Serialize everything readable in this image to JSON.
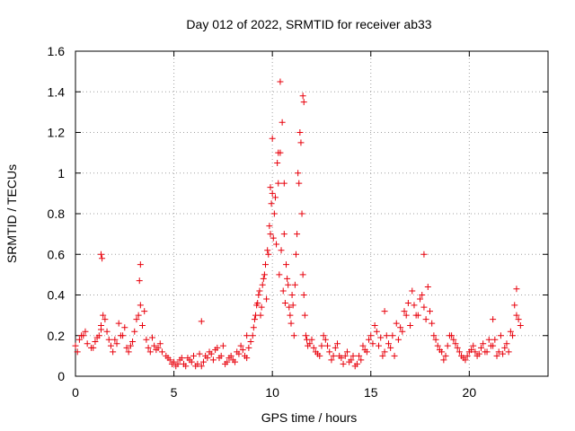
{
  "chart_data": {
    "type": "scatter",
    "title": "Day 012 of 2022, SRMTID for receiver ab33",
    "xlabel": "GPS time / hours",
    "ylabel": "SRMTID / TECUs",
    "xlim": [
      0,
      24
    ],
    "ylim": [
      0,
      1.6
    ],
    "xticks": [
      0,
      5,
      10,
      15,
      20
    ],
    "xtick_labels": [
      "0",
      "5",
      "10",
      "15",
      "20"
    ],
    "yticks": [
      0,
      0.2,
      0.4,
      0.6,
      0.8,
      1,
      1.2,
      1.4,
      1.6
    ],
    "ytick_labels": [
      "0",
      "0.2",
      "0.4",
      "0.6",
      "0.8",
      "1",
      "1.2",
      "1.4",
      "1.6"
    ],
    "grid": true,
    "marker": "+",
    "color": "#e8000b",
    "series": [
      {
        "name": "SRMTID",
        "x": [
          0.0,
          0.2,
          0.4,
          0.6,
          0.8,
          1.0,
          1.2,
          1.3,
          1.4,
          1.6,
          1.8,
          2.0,
          2.2,
          2.4,
          2.6,
          2.8,
          3.0,
          3.2,
          3.3,
          3.4,
          3.6,
          3.8,
          4.0,
          4.2,
          4.4,
          4.6,
          4.8,
          5.0,
          5.2,
          5.4,
          5.6,
          5.8,
          6.0,
          6.2,
          6.4,
          6.6,
          6.8,
          7.0,
          7.2,
          7.4,
          7.6,
          7.8,
          8.0,
          8.2,
          8.4,
          8.6,
          8.8,
          9.0,
          9.1,
          9.2,
          9.3,
          9.4,
          9.5,
          9.6,
          9.7,
          9.8,
          9.9,
          10.0,
          10.1,
          10.2,
          10.3,
          10.4,
          10.5,
          10.6,
          10.7,
          10.8,
          10.9,
          11.0,
          11.1,
          11.2,
          11.3,
          11.4,
          11.5,
          11.6,
          11.7,
          11.8,
          12.0,
          12.2,
          12.4,
          12.6,
          12.8,
          13.0,
          13.2,
          13.4,
          13.6,
          13.8,
          14.0,
          14.2,
          14.4,
          14.6,
          14.8,
          15.0,
          15.2,
          15.4,
          15.6,
          15.8,
          16.0,
          16.2,
          16.4,
          16.6,
          16.8,
          17.0,
          17.2,
          17.4,
          17.6,
          17.8,
          18.0,
          18.2,
          18.4,
          18.6,
          18.8,
          19.0,
          19.2,
          19.4,
          19.6,
          19.8,
          20.0,
          20.2,
          20.4,
          20.6,
          20.8,
          21.0,
          21.2,
          21.4,
          21.6,
          21.8,
          22.0,
          22.2,
          22.4,
          22.6,
          0.1,
          0.3,
          0.5,
          0.9,
          1.1,
          1.3,
          1.5,
          1.7,
          1.9,
          2.1,
          2.3,
          2.5,
          2.7,
          2.9,
          3.1,
          3.5,
          3.7,
          3.9,
          4.1,
          4.3,
          4.7,
          4.9,
          5.1,
          5.3,
          5.5,
          5.7,
          5.9,
          6.1,
          6.3,
          6.5,
          6.7,
          6.9,
          7.1,
          7.3,
          7.5,
          7.7,
          7.9,
          8.1,
          8.3,
          8.5,
          8.7,
          8.9,
          9.05,
          9.15,
          9.25,
          9.35,
          9.45,
          9.55,
          9.65,
          9.75,
          9.85,
          9.95,
          10.05,
          10.15,
          10.25,
          10.35,
          10.45,
          10.55,
          10.65,
          10.75,
          10.85,
          10.95,
          11.05,
          11.15,
          11.25,
          11.35,
          11.45,
          11.55,
          11.65,
          11.75,
          11.9,
          12.1,
          12.3,
          12.5,
          12.7,
          12.9,
          13.1,
          13.3,
          13.5,
          13.7,
          13.9,
          14.1,
          14.3,
          14.5,
          14.7,
          14.9,
          15.1,
          15.3,
          15.5,
          15.7,
          15.9,
          16.1,
          16.3,
          16.5,
          16.7,
          16.9,
          17.1,
          17.3,
          17.5,
          17.7,
          17.9,
          18.1,
          18.3,
          18.5,
          18.7,
          18.9,
          19.1,
          19.3,
          19.5,
          19.7,
          19.9,
          20.1,
          20.3,
          20.5,
          20.7,
          20.9,
          21.1,
          21.3,
          21.5,
          21.7,
          21.9,
          22.1,
          22.3,
          22.5,
          1.3,
          1.35,
          3.3,
          3.25,
          10.4,
          11.55,
          11.6,
          10.3,
          10.0,
          9.9,
          10.6,
          17.7,
          22.4,
          21.2,
          15.7,
          6.4,
          8.7
        ],
        "y": [
          0.15,
          0.18,
          0.2,
          0.16,
          0.14,
          0.17,
          0.2,
          0.25,
          0.3,
          0.22,
          0.15,
          0.18,
          0.26,
          0.2,
          0.14,
          0.15,
          0.22,
          0.3,
          0.35,
          0.25,
          0.18,
          0.12,
          0.15,
          0.14,
          0.12,
          0.1,
          0.08,
          0.07,
          0.06,
          0.09,
          0.05,
          0.08,
          0.1,
          0.06,
          0.05,
          0.1,
          0.12,
          0.08,
          0.14,
          0.1,
          0.06,
          0.09,
          0.08,
          0.12,
          0.15,
          0.1,
          0.14,
          0.2,
          0.28,
          0.35,
          0.4,
          0.3,
          0.45,
          0.5,
          0.38,
          0.6,
          0.7,
          0.9,
          0.8,
          0.65,
          0.95,
          1.1,
          1.25,
          0.7,
          0.55,
          0.45,
          0.3,
          0.4,
          0.2,
          0.6,
          1.0,
          1.2,
          0.8,
          0.4,
          0.2,
          0.15,
          0.18,
          0.12,
          0.1,
          0.2,
          0.15,
          0.08,
          0.14,
          0.1,
          0.06,
          0.12,
          0.08,
          0.05,
          0.1,
          0.15,
          0.12,
          0.2,
          0.25,
          0.15,
          0.1,
          0.2,
          0.14,
          0.1,
          0.18,
          0.22,
          0.3,
          0.25,
          0.35,
          0.3,
          0.4,
          0.28,
          0.32,
          0.2,
          0.15,
          0.12,
          0.1,
          0.2,
          0.18,
          0.14,
          0.1,
          0.08,
          0.12,
          0.15,
          0.1,
          0.14,
          0.12,
          0.18,
          0.15,
          0.1,
          0.2,
          0.14,
          0.12,
          0.2,
          0.3,
          0.25,
          0.12,
          0.2,
          0.22,
          0.14,
          0.19,
          0.23,
          0.28,
          0.18,
          0.12,
          0.16,
          0.2,
          0.24,
          0.12,
          0.17,
          0.28,
          0.32,
          0.14,
          0.19,
          0.13,
          0.16,
          0.09,
          0.06,
          0.05,
          0.08,
          0.06,
          0.09,
          0.07,
          0.05,
          0.11,
          0.07,
          0.09,
          0.11,
          0.13,
          0.09,
          0.15,
          0.07,
          0.1,
          0.07,
          0.11,
          0.13,
          0.09,
          0.17,
          0.24,
          0.3,
          0.36,
          0.42,
          0.34,
          0.48,
          0.55,
          0.62,
          0.74,
          0.85,
          0.68,
          0.88,
          1.05,
          0.5,
          0.62,
          0.42,
          0.36,
          0.48,
          0.34,
          0.26,
          0.35,
          0.45,
          0.7,
          0.95,
          1.15,
          0.5,
          0.3,
          0.18,
          0.16,
          0.14,
          0.11,
          0.15,
          0.18,
          0.12,
          0.1,
          0.16,
          0.09,
          0.1,
          0.07,
          0.1,
          0.06,
          0.08,
          0.13,
          0.18,
          0.16,
          0.22,
          0.19,
          0.12,
          0.16,
          0.2,
          0.26,
          0.24,
          0.32,
          0.36,
          0.42,
          0.3,
          0.38,
          0.34,
          0.44,
          0.26,
          0.18,
          0.13,
          0.08,
          0.15,
          0.2,
          0.16,
          0.12,
          0.09,
          0.1,
          0.13,
          0.12,
          0.11,
          0.16,
          0.12,
          0.15,
          0.18,
          0.12,
          0.11,
          0.16,
          0.22,
          0.35,
          0.28,
          0.6,
          0.58,
          0.55,
          0.47,
          1.45,
          1.38,
          1.35,
          1.1,
          1.17,
          0.93,
          0.95,
          0.6,
          0.43,
          0.28,
          0.32,
          0.27,
          0.2
        ]
      }
    ]
  }
}
